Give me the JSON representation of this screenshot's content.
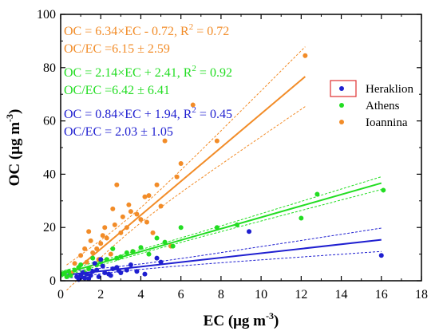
{
  "colors": {
    "Heraklion": "#1f1fd0",
    "Athens": "#22dd22",
    "Ioannina": "#f28c28",
    "legend_border": "#e03030"
  },
  "chart_data": {
    "type": "scatter",
    "xlabel": {
      "main": "EC (μg m",
      "sup": "-3",
      "tail": ")"
    },
    "ylabel": {
      "main": "OC (μg m",
      "sup": "-3",
      "tail": ")"
    },
    "xlim": [
      0,
      18
    ],
    "ylim": [
      0,
      100
    ],
    "xticks": [
      0,
      2,
      4,
      6,
      8,
      10,
      12,
      14,
      16,
      18
    ],
    "yticks": [
      0,
      20,
      40,
      60,
      80,
      100
    ],
    "grid": false,
    "legend_position": "right",
    "legend_entries": [
      "Heraklion",
      "Athens",
      "Ioannina"
    ],
    "annotations": [
      {
        "series": "Ioannina",
        "text": "OC = 6.34×EC - 0.72, R",
        "sup": "2",
        "tail": " = 0.72"
      },
      {
        "series": "Ioannina",
        "text": "OC/EC =6.15 ± 2.59",
        "sup": "",
        "tail": ""
      },
      {
        "series": "Athens",
        "text": "OC = 2.14×EC + 2.41, R",
        "sup": "2",
        "tail": " = 0.92"
      },
      {
        "series": "Athens",
        "text": "OC/EC =6.42 ± 6.41",
        "sup": "",
        "tail": ""
      },
      {
        "series": "Heraklion",
        "text": "OC = 0.84×EC + 1.94, R",
        "sup": "2",
        "tail": " = 0.45"
      },
      {
        "series": "Heraklion",
        "text": "OC/EC = 2.03 ± 1.05",
        "sup": "",
        "tail": ""
      }
    ],
    "series": [
      {
        "name": "Heraklion",
        "fit": {
          "slope": 0.84,
          "intercept": 1.94,
          "x_range": [
            0.3,
            16
          ]
        },
        "x": [
          0.8,
          0.9,
          1.0,
          1.1,
          1.2,
          1.3,
          1.5,
          1.6,
          1.8,
          2.0,
          2.2,
          2.4,
          2.6,
          2.8,
          3.0,
          3.3,
          3.5,
          3.8,
          4.2,
          4.8,
          5.0,
          1.9,
          2.1,
          1.0,
          1.4,
          2.5,
          9.4,
          16.0,
          1.7,
          2.9
        ],
        "y": [
          1.5,
          0.5,
          2.0,
          3.0,
          1.0,
          2.5,
          2.0,
          3.5,
          4.0,
          8.0,
          3.0,
          2.5,
          4.5,
          5.0,
          3.0,
          4.0,
          6.0,
          3.5,
          2.5,
          8.5,
          7.0,
          1.5,
          5.5,
          1.2,
          0.8,
          2.0,
          18.5,
          9.5,
          6.5,
          3.8
        ]
      },
      {
        "name": "Athens",
        "fit": {
          "slope": 2.14,
          "intercept": 2.41,
          "x_range": [
            0,
            16
          ]
        },
        "x": [
          0.1,
          0.2,
          0.3,
          0.4,
          0.5,
          0.7,
          0.9,
          1.0,
          1.2,
          1.4,
          1.6,
          1.8,
          2.0,
          2.3,
          2.6,
          3.0,
          3.3,
          3.6,
          4.0,
          4.4,
          4.8,
          5.2,
          5.6,
          6.0,
          7.8,
          8.8,
          12.0,
          12.8,
          16.1,
          2.8
        ],
        "y": [
          2.5,
          3.0,
          1.5,
          3.5,
          2.0,
          4.0,
          5.0,
          6.0,
          3.0,
          4.5,
          8.5,
          6.0,
          7.0,
          8.0,
          12.0,
          9.0,
          10.5,
          11.0,
          12.5,
          10.0,
          16.0,
          14.5,
          13.0,
          20.0,
          20.0,
          21.0,
          23.5,
          32.5,
          34.0,
          8.5
        ]
      },
      {
        "name": "Ioannina",
        "fit": {
          "slope": 6.34,
          "intercept": -0.72,
          "x_range": [
            0.3,
            12.2
          ]
        },
        "x": [
          0.5,
          0.7,
          0.9,
          1.0,
          1.2,
          1.3,
          1.5,
          1.6,
          1.8,
          1.9,
          2.0,
          2.1,
          2.3,
          2.5,
          2.6,
          2.7,
          2.8,
          3.0,
          3.1,
          3.3,
          3.4,
          3.6,
          3.8,
          4.0,
          4.2,
          4.4,
          4.6,
          4.8,
          5.0,
          5.2,
          5.5,
          5.8,
          6.0,
          6.6,
          7.8,
          12.2,
          2.2,
          1.4,
          3.5,
          4.3
        ],
        "y": [
          3.0,
          6.5,
          5.0,
          9.5,
          12.0,
          7.0,
          15.0,
          10.5,
          12.0,
          8.0,
          14.0,
          17.0,
          16.0,
          10.0,
          27.0,
          21.0,
          36.0,
          18.0,
          24.0,
          20.0,
          28.5,
          11.0,
          25.0,
          23.0,
          31.5,
          32.0,
          18.0,
          36.0,
          28.0,
          52.5,
          13.0,
          39.0,
          44.0,
          66.0,
          52.5,
          84.5,
          20.0,
          18.5,
          26.0,
          22.0
        ]
      }
    ]
  }
}
